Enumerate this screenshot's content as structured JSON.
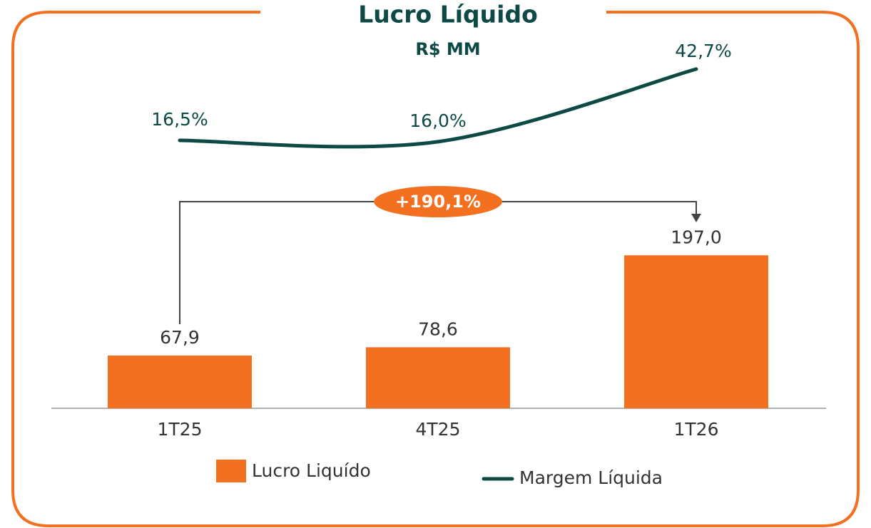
{
  "chart_data": {
    "type": "bar",
    "title": "Lucro Líquido",
    "subtitle": "R$ MM",
    "categories": [
      "1T25",
      "4T25",
      "1T26"
    ],
    "series": [
      {
        "name": "Lucro Liquído",
        "type": "bar",
        "color": "#f37021",
        "values": [
          67.9,
          78.6,
          197.0
        ],
        "value_labels": [
          "67,9",
          "78,6",
          "197,0"
        ]
      },
      {
        "name": "Margem Líquida",
        "type": "line",
        "axis": "y2",
        "color": "#0d4a45",
        "values": [
          16.5,
          16.0,
          42.7
        ],
        "value_labels": [
          "16,5%",
          "16,0%",
          "42,7%"
        ]
      }
    ],
    "annotations": [
      "+190,1%"
    ]
  }
}
